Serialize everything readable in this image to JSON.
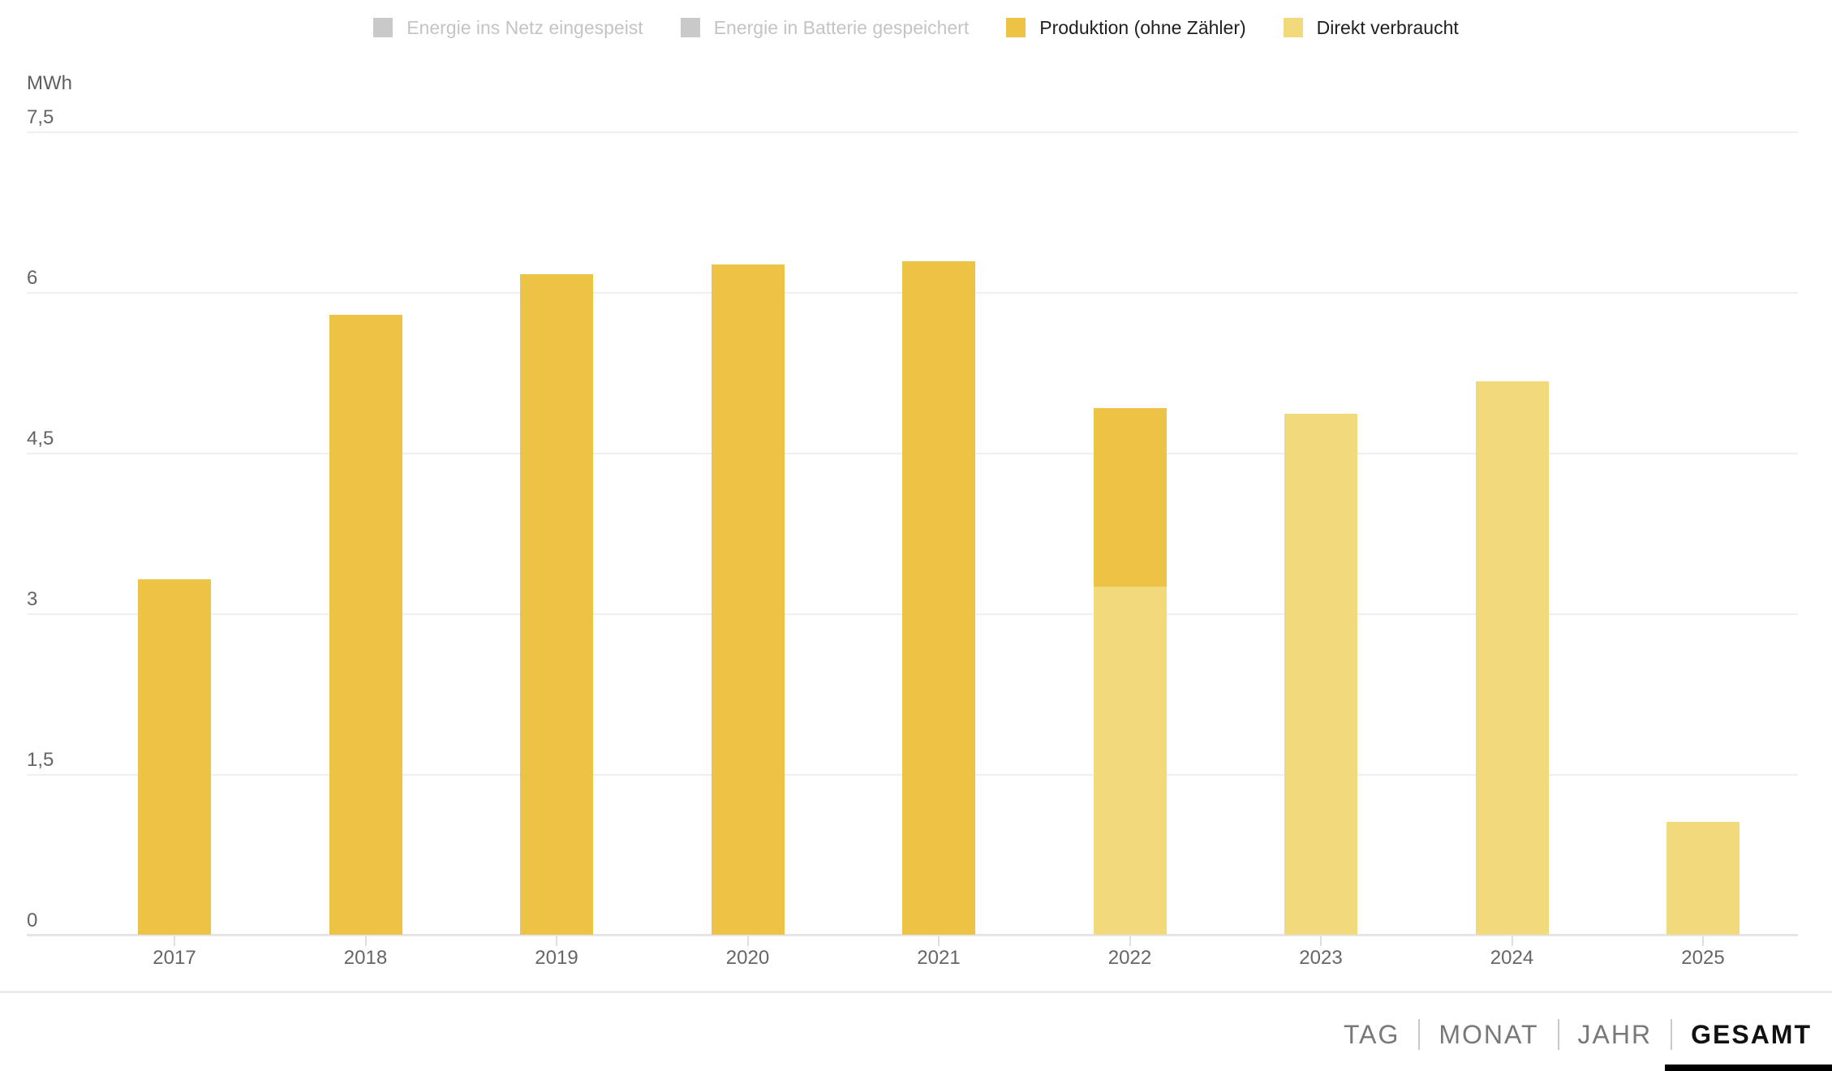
{
  "legend": {
    "items": [
      {
        "label": "Energie ins Netz eingespeist",
        "swatch_color": "#c9c9c9",
        "text_color": "#c4c4c4",
        "enabled": false
      },
      {
        "label": "Energie in Batterie gespeichert",
        "swatch_color": "#c9c9c9",
        "text_color": "#c4c4c4",
        "enabled": false
      },
      {
        "label": "Produktion (ohne Zähler)",
        "swatch_color": "#ecc344",
        "text_color": "#1f1f1f",
        "enabled": true
      },
      {
        "label": "Direkt verbraucht",
        "swatch_color": "#f2da7c",
        "text_color": "#1f1f1f",
        "enabled": true
      }
    ]
  },
  "chart_data": {
    "type": "bar",
    "stacked": true,
    "unit_label": "MWh",
    "categories": [
      "2017",
      "2018",
      "2019",
      "2020",
      "2021",
      "2022",
      "2023",
      "2024",
      "2025"
    ],
    "series": [
      {
        "name": "Direkt verbraucht",
        "color": "#f2da7c",
        "values": [
          0,
          0,
          0,
          0,
          0,
          3.25,
          4.86,
          5.17,
          1.05
        ]
      },
      {
        "name": "Produktion (ohne Zähler)",
        "color": "#ecc344",
        "values": [
          3.32,
          5.79,
          6.17,
          6.26,
          6.29,
          1.67,
          0,
          0,
          0
        ]
      }
    ],
    "totals": [
      3.32,
      5.79,
      6.17,
      6.26,
      6.29,
      4.92,
      4.86,
      5.17,
      1.05
    ],
    "ylim": [
      0,
      7.5
    ],
    "yticks": [
      {
        "value": 0,
        "label": "0"
      },
      {
        "value": 1.5,
        "label": "1,5"
      },
      {
        "value": 3,
        "label": "3"
      },
      {
        "value": 4.5,
        "label": "4,5"
      },
      {
        "value": 6,
        "label": "6"
      },
      {
        "value": 7.5,
        "label": "7,5"
      }
    ],
    "grid": true,
    "legend_position": "top"
  },
  "footer": {
    "tabs": [
      {
        "label": "TAG",
        "active": false
      },
      {
        "label": "MONAT",
        "active": false
      },
      {
        "label": "JAHR",
        "active": false
      },
      {
        "label": "GESAMT",
        "active": true
      }
    ]
  }
}
